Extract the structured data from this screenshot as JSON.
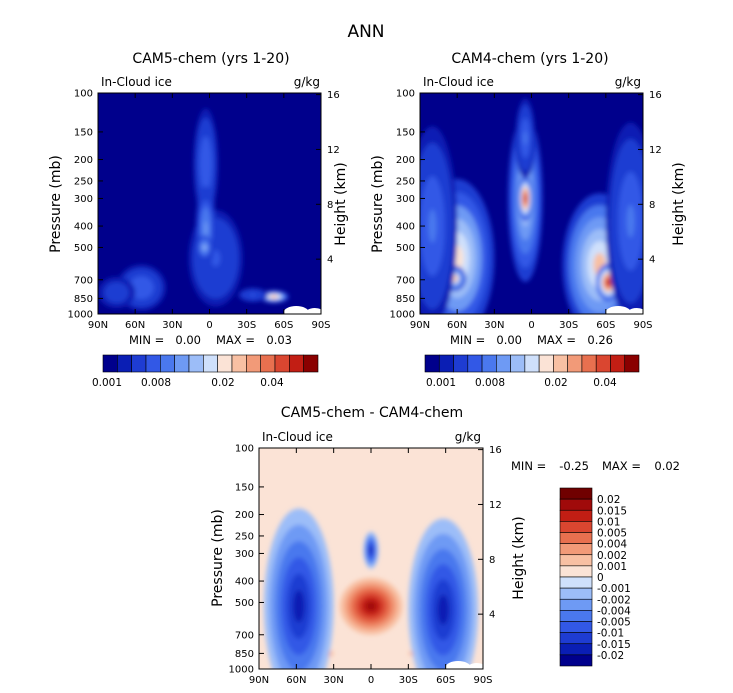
{
  "figure": {
    "title": "ANN"
  },
  "chart_data": [
    {
      "id": "p1",
      "type": "contour",
      "title": "CAM5-chem (yrs 1-20)",
      "variable": "In-Cloud ice",
      "units": "g/kg",
      "ylabel": "Pressure (mb)",
      "y2label": "Height (km)",
      "x_ticks": [
        "90N",
        "60N",
        "30N",
        "0",
        "30S",
        "60S",
        "90S"
      ],
      "y_ticks": [
        "100",
        "150",
        "200",
        "250",
        "300",
        "400",
        "500",
        "700",
        "850",
        "1000"
      ],
      "y2_ticks": [
        "16",
        "12",
        "8",
        "4"
      ],
      "stats": {
        "min_label": "MIN =",
        "min": "0.00",
        "max_label": "MAX =",
        "max": "0.03"
      },
      "colorbar": {
        "levels": 15,
        "labels": [
          "0.001",
          "0.008",
          "0.02",
          "0.04"
        ]
      },
      "blobs": [
        {
          "lat": -5,
          "p": 560,
          "rlat": 22,
          "rp": 260,
          "v": 0.35
        },
        {
          "lat": 3,
          "p": 210,
          "rlat": 10,
          "rp": 110,
          "v": 0.45
        },
        {
          "lat": 3,
          "p": 410,
          "rlat": 8,
          "rp": 170,
          "v": 0.75
        },
        {
          "lat": 4,
          "p": 500,
          "rlat": 6,
          "rp": 60,
          "v": 1.0
        },
        {
          "lat": -52,
          "p": 835,
          "rlat": 12,
          "rp": 55,
          "v": 1.7
        },
        {
          "lat": -35,
          "p": 820,
          "rlat": 12,
          "rp": 60,
          "v": 0.3
        },
        {
          "lat": 55,
          "p": 760,
          "rlat": 20,
          "rp": 180,
          "v": 0.45
        },
        {
          "lat": 75,
          "p": 800,
          "rlat": 15,
          "rp": 130,
          "v": 0.25
        }
      ]
    },
    {
      "id": "p2",
      "type": "contour",
      "title": "CAM4-chem (yrs 1-20)",
      "variable": "In-Cloud ice",
      "units": "g/kg",
      "ylabel": "Pressure (mb)",
      "y2label": "Height (km)",
      "x_ticks": [
        "90N",
        "60N",
        "30N",
        "0",
        "30S",
        "60S",
        "90S"
      ],
      "y_ticks": [
        "100",
        "150",
        "200",
        "250",
        "300",
        "400",
        "500",
        "700",
        "850",
        "1000"
      ],
      "y2_ticks": [
        "16",
        "12",
        "8",
        "4"
      ],
      "stats": {
        "min_label": "MIN =",
        "min": "0.00",
        "max_label": "MAX =",
        "max": "0.26"
      },
      "colorbar": {
        "levels": 15,
        "labels": [
          "0.001",
          "0.008",
          "0.02",
          "0.04"
        ]
      },
      "blobs": [
        {
          "lat": 5,
          "p": 300,
          "rlat": 14,
          "rp": 270,
          "v": 1.1
        },
        {
          "lat": 5,
          "p": 300,
          "rlat": 6,
          "rp": 70,
          "v": 2.3
        },
        {
          "lat": 5,
          "p": 160,
          "rlat": 8,
          "rp": 70,
          "v": 0.5
        },
        {
          "lat": 60,
          "p": 560,
          "rlat": 30,
          "rp": 380,
          "v": 1.4
        },
        {
          "lat": 62,
          "p": 690,
          "rlat": 9,
          "rp": 90,
          "v": 1.6
        },
        {
          "lat": -55,
          "p": 600,
          "rlat": 30,
          "rp": 380,
          "v": 1.5
        },
        {
          "lat": -62,
          "p": 720,
          "rlat": 10,
          "rp": 140,
          "v": 2.4
        },
        {
          "lat": 80,
          "p": 400,
          "rlat": 20,
          "rp": 400,
          "v": 0.5
        },
        {
          "lat": -80,
          "p": 380,
          "rlat": 20,
          "rp": 400,
          "v": 0.5
        }
      ]
    },
    {
      "id": "p3",
      "type": "contour",
      "title": "CAM5-chem - CAM4-chem",
      "variable": "In-Cloud ice",
      "units": "g/kg",
      "ylabel": "Pressure (mb)",
      "y2label": "Height (km)",
      "x_ticks": [
        "90N",
        "60N",
        "30N",
        "0",
        "30S",
        "60S",
        "90S"
      ],
      "y_ticks": [
        "100",
        "150",
        "200",
        "250",
        "300",
        "400",
        "500",
        "700",
        "850",
        "1000"
      ],
      "y2_ticks": [
        "16",
        "12",
        "8",
        "4"
      ],
      "stats": {
        "min_label": "MIN =",
        "min": "-0.25",
        "max_label": "MAX =",
        "max": "0.02"
      },
      "colorbar": {
        "levels": 16,
        "labels": [
          "0.02",
          "0.015",
          "0.01",
          "0.005",
          "0.004",
          "0.002",
          "0.001",
          "0",
          "-0.001",
          "-0.002",
          "-0.004",
          "-0.005",
          "-0.01",
          "-0.015",
          "-0.02"
        ]
      },
      "blobs": [
        {
          "lat": 0,
          "p": 520,
          "rlat": 25,
          "rp": 150,
          "v": 0.55
        },
        {
          "lat": -45,
          "p": 850,
          "rlat": 15,
          "rp": 40,
          "v": 0.6
        },
        {
          "lat": 38,
          "p": 850,
          "rlat": 8,
          "rp": 40,
          "v": 0.3
        },
        {
          "lat": 0,
          "p": 290,
          "rlat": 6,
          "rp": 55,
          "v": -0.6
        },
        {
          "lat": 58,
          "p": 520,
          "rlat": 28,
          "rp": 400,
          "v": -0.55
        },
        {
          "lat": -58,
          "p": 540,
          "rlat": 28,
          "rp": 400,
          "v": -0.6
        }
      ]
    }
  ]
}
